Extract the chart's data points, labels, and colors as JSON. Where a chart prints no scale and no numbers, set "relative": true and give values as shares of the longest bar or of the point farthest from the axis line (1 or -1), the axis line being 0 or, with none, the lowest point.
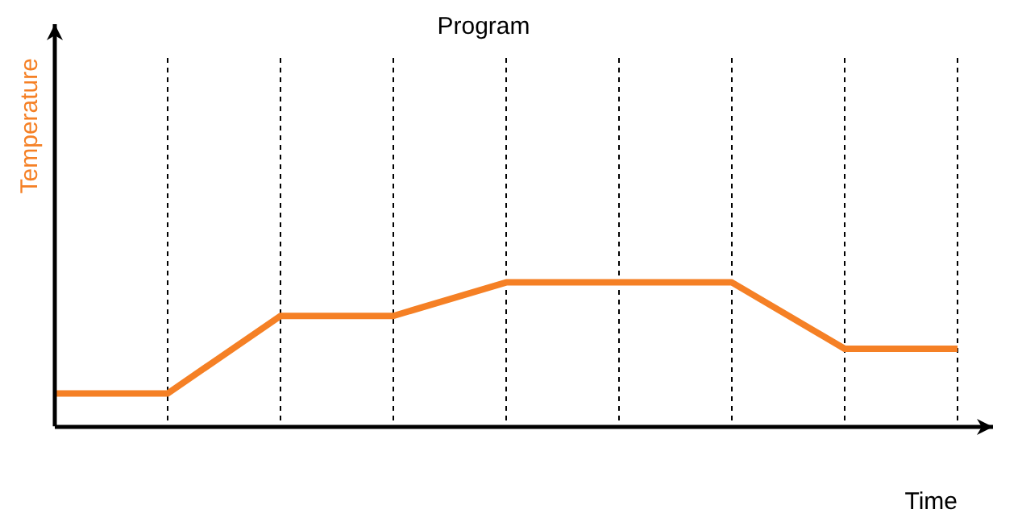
{
  "chart_data": {
    "type": "line",
    "title": "Program",
    "xlabel": "Time",
    "ylabel": "Temperature",
    "relative": true,
    "grid": "x",
    "line_style": "solid",
    "marker": "none",
    "categories": [
      null,
      null,
      null,
      null,
      null,
      null,
      null,
      null,
      null
    ],
    "series": [
      {
        "color": "#f58025",
        "values": [
          0.228,
          0.228,
          0.767,
          0.767,
          1,
          1,
          1,
          0.539,
          0.539
        ]
      }
    ]
  }
}
